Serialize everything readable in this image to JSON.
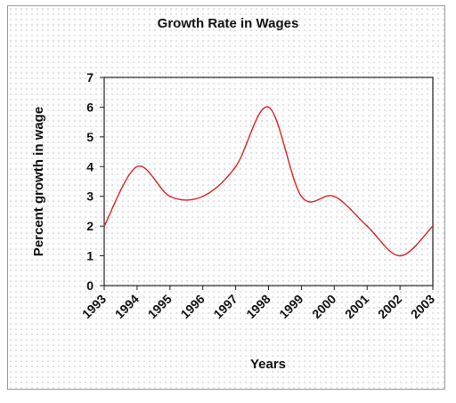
{
  "chart_data": {
    "type": "line",
    "title": "Growth Rate in Wages",
    "xlabel": "Years",
    "ylabel": "Percent growth in wage",
    "categories": [
      "1993",
      "1994",
      "1995",
      "1996",
      "1997",
      "1998",
      "1999",
      "2000",
      "2001",
      "2002",
      "2003"
    ],
    "series": [
      {
        "values": [
          2.0,
          4.0,
          3.0,
          3.0,
          4.0,
          6.0,
          3.0,
          3.0,
          2.0,
          1.0,
          2.0
        ],
        "color": "#e02020"
      }
    ],
    "ylim": [
      0,
      7
    ],
    "yticks": [
      0,
      1,
      2,
      3,
      4,
      5,
      6,
      7
    ],
    "grid": false,
    "legend": "none"
  }
}
